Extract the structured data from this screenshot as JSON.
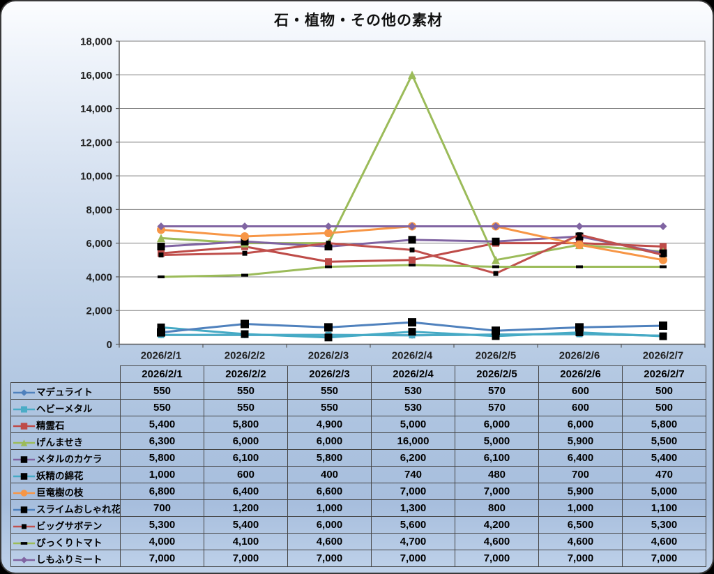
{
  "chart_data": {
    "type": "line",
    "title": "石・植物・その他の素材",
    "categories": [
      "2026/2/1",
      "2026/2/2",
      "2026/2/3",
      "2026/2/4",
      "2026/2/5",
      "2026/2/6",
      "2026/2/7"
    ],
    "xlabel": "",
    "ylabel": "",
    "ylim": [
      0,
      18000
    ],
    "yticks": [
      0,
      2000,
      4000,
      6000,
      8000,
      10000,
      12000,
      14000,
      16000,
      18000
    ],
    "grid": true,
    "legend_position": "table-left",
    "series": [
      {
        "name": "マデュライト",
        "color": "#4F81BD",
        "marker": {
          "shape": "diamond",
          "color": "#4F81BD",
          "size": 10
        },
        "values": [
          550,
          550,
          550,
          530,
          570,
          600,
          500
        ]
      },
      {
        "name": "ヘビーメタル",
        "color": "#4BACC6",
        "marker": {
          "shape": "square",
          "color": "#4BACC6",
          "size": 9
        },
        "values": [
          550,
          550,
          550,
          530,
          570,
          600,
          500
        ]
      },
      {
        "name": "精霊石",
        "color": "#BE4B48",
        "marker": {
          "shape": "square",
          "color": "#BE4B48",
          "size": 10
        },
        "values": [
          5400,
          5800,
          4900,
          5000,
          6000,
          6000,
          5800
        ]
      },
      {
        "name": "げんませき",
        "color": "#9BBB59",
        "marker": {
          "shape": "triangle",
          "color": "#9BBB59",
          "size": 12
        },
        "values": [
          6300,
          6000,
          6000,
          16000,
          5000,
          5900,
          5500
        ]
      },
      {
        "name": "メタルのカケラ",
        "color": "#8064A2",
        "marker": {
          "shape": "square",
          "color": "#000000",
          "size": 11
        },
        "values": [
          5800,
          6100,
          5800,
          6200,
          6100,
          6400,
          5400
        ]
      },
      {
        "name": "妖精の綿花",
        "color": "#45AAC5",
        "marker": {
          "shape": "square",
          "color": "#000000",
          "size": 11
        },
        "values": [
          1000,
          600,
          400,
          740,
          480,
          700,
          470
        ]
      },
      {
        "name": "巨竜樹の枝",
        "color": "#F79646",
        "marker": {
          "shape": "circle",
          "color": "#F79646",
          "size": 12
        },
        "values": [
          6800,
          6400,
          6600,
          7000,
          7000,
          5900,
          5000
        ]
      },
      {
        "name": "スライムおしゃれ花",
        "color": "#4F81BD",
        "marker": {
          "shape": "square",
          "color": "#000000",
          "size": 12
        },
        "values": [
          700,
          1200,
          1000,
          1300,
          800,
          1000,
          1100
        ]
      },
      {
        "name": "ビッグサボテン",
        "color": "#C0504D",
        "marker": {
          "shape": "square",
          "color": "#000000",
          "size": 7
        },
        "values": [
          5300,
          5400,
          6000,
          5600,
          4200,
          6500,
          5300
        ]
      },
      {
        "name": "びっくりトマト",
        "color": "#9BBB59",
        "marker": {
          "shape": "dash",
          "color": "#000000",
          "size": 10
        },
        "values": [
          4000,
          4100,
          4600,
          4700,
          4600,
          4600,
          4600
        ]
      },
      {
        "name": "しもふりミート",
        "color": "#8064A2",
        "marker": {
          "shape": "diamond",
          "color": "#8064A2",
          "size": 11
        },
        "values": [
          7000,
          7000,
          7000,
          7000,
          7000,
          7000,
          7000
        ]
      }
    ]
  },
  "colors": {
    "background_top": "#FCFDFF",
    "background_bottom": "#A7BEDD",
    "plot_background": "#FFFFFF",
    "gridline": "#7F7F7F",
    "axis": "#595959",
    "table_border": "#454545",
    "text": "#000000"
  }
}
